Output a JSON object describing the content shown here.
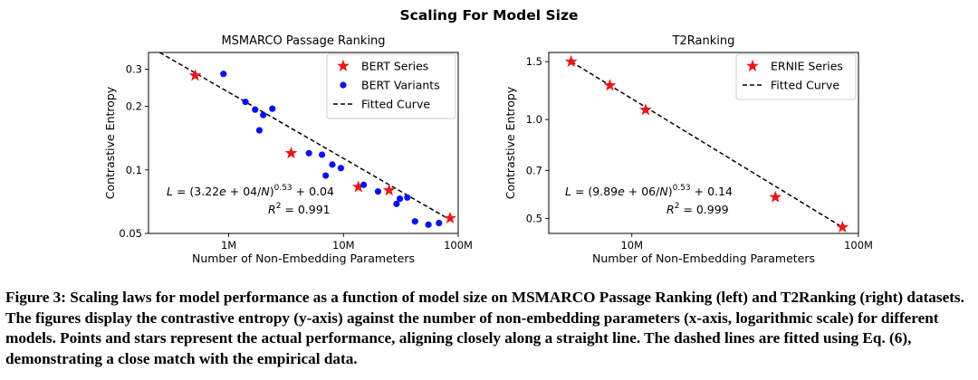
{
  "figure": {
    "suptitle": "Scaling For Model Size",
    "caption": "Figure 3: Scaling laws for model performance as a function of model size on MSMARCO Passage Ranking (left) and T2Ranking (right) datasets. The figures display the contrastive entropy (y-axis) against the number of non-embedding parameters (x-axis, logarithmic scale) for different models. Points and stars represent the actual performance, aligning closely along a straight line. The dashed lines are fitted using Eq. (6), demonstrating a close match with the empirical data."
  },
  "chart_data": [
    {
      "type": "scatter",
      "title": "MSMARCO Passage Ranking",
      "xlabel": "Number of Non-Embedding Parameters",
      "ylabel": "Contrastive Entropy",
      "xscale": "log",
      "yscale": "log",
      "xlim": [
        200000,
        100000000
      ],
      "ylim": [
        0.05,
        0.36
      ],
      "xticks": [
        {
          "v": 1000000,
          "label": "1M"
        },
        {
          "v": 10000000,
          "label": "10M"
        },
        {
          "v": 100000000,
          "label": "100M"
        }
      ],
      "yticks": [
        {
          "v": 0.05,
          "label": "0.05"
        },
        {
          "v": 0.1,
          "label": "0.1"
        },
        {
          "v": 0.2,
          "label": "0.2"
        },
        {
          "v": 0.3,
          "label": "0.3"
        }
      ],
      "legend_position": "top-right",
      "series": [
        {
          "name": "BERT Series",
          "marker": "star",
          "color": "#e8191c",
          "points": [
            [
              510000,
              0.28
            ],
            [
              3500000,
              0.12
            ],
            [
              13500000,
              0.083
            ],
            [
              25000000,
              0.08
            ],
            [
              85000000,
              0.059
            ]
          ]
        },
        {
          "name": "BERT Variants",
          "marker": "circle",
          "color": "#0b12ee",
          "points": [
            [
              900000,
              0.285
            ],
            [
              1400000,
              0.21
            ],
            [
              1700000,
              0.193
            ],
            [
              2000000,
              0.182
            ],
            [
              2400000,
              0.195
            ],
            [
              1850000,
              0.154
            ],
            [
              5000000,
              0.12
            ],
            [
              6500000,
              0.118
            ],
            [
              7000000,
              0.094
            ],
            [
              8000000,
              0.106
            ],
            [
              9500000,
              0.102
            ],
            [
              15000000,
              0.085
            ],
            [
              20000000,
              0.079
            ],
            [
              29000000,
              0.069
            ],
            [
              31000000,
              0.073
            ],
            [
              36000000,
              0.074
            ],
            [
              42000000,
              0.057
            ],
            [
              55000000,
              0.055
            ],
            [
              68000000,
              0.056
            ]
          ]
        },
        {
          "name": "Fitted Curve",
          "type": "line",
          "style": "dashed",
          "color": "#000000",
          "points": [
            [
              250000,
              0.36
            ],
            [
              85000000,
              0.058
            ]
          ]
        }
      ],
      "annotations": [
        {
          "text": "L = (3.22e + 04/N)^0.53 + 0.04",
          "kind": "formula",
          "parts": [
            "(3.22",
            "e",
            " + 04/",
            "N",
            ")",
            "0.53",
            " + 0.04"
          ]
        },
        {
          "text": "R^2 = 0.991",
          "kind": "r2",
          "parts": [
            "0.991"
          ]
        }
      ]
    },
    {
      "type": "scatter",
      "title": "T2Ranking",
      "xlabel": "Number of Non-Embedding Parameters",
      "ylabel": "Contrastive Entropy",
      "xscale": "log",
      "yscale": "log",
      "xlim": [
        4300000,
        100000000
      ],
      "ylim": [
        0.45,
        1.6
      ],
      "xticks": [
        {
          "v": 10000000,
          "label": "10M"
        },
        {
          "v": 100000000,
          "label": "100M"
        }
      ],
      "yticks": [
        {
          "v": 0.5,
          "label": "0.5"
        },
        {
          "v": 0.7,
          "label": "0.7"
        },
        {
          "v": 1.0,
          "label": "1.0"
        },
        {
          "v": 1.5,
          "label": "1.5"
        }
      ],
      "legend_position": "top-right",
      "series": [
        {
          "name": "ERNIE Series",
          "marker": "star",
          "color": "#e8191c",
          "points": [
            [
              5400000,
              1.5
            ],
            [
              8000000,
              1.27
            ],
            [
              11500000,
              1.07
            ],
            [
              43000000,
              0.58
            ],
            [
              85000000,
              0.47
            ]
          ]
        },
        {
          "name": "Fitted Curve",
          "type": "line",
          "style": "dashed",
          "color": "#000000",
          "points": [
            [
              5400000,
              1.5
            ],
            [
              85000000,
              0.47
            ]
          ]
        }
      ],
      "annotations": [
        {
          "text": "L = (9.89e + 06/N)^0.53 + 0.14",
          "kind": "formula",
          "parts": [
            "(9.89",
            "e",
            " + 06/",
            "N",
            ")",
            "0.53",
            " + 0.14"
          ]
        },
        {
          "text": "R^2 = 0.999",
          "kind": "r2",
          "parts": [
            "0.999"
          ]
        }
      ]
    }
  ]
}
